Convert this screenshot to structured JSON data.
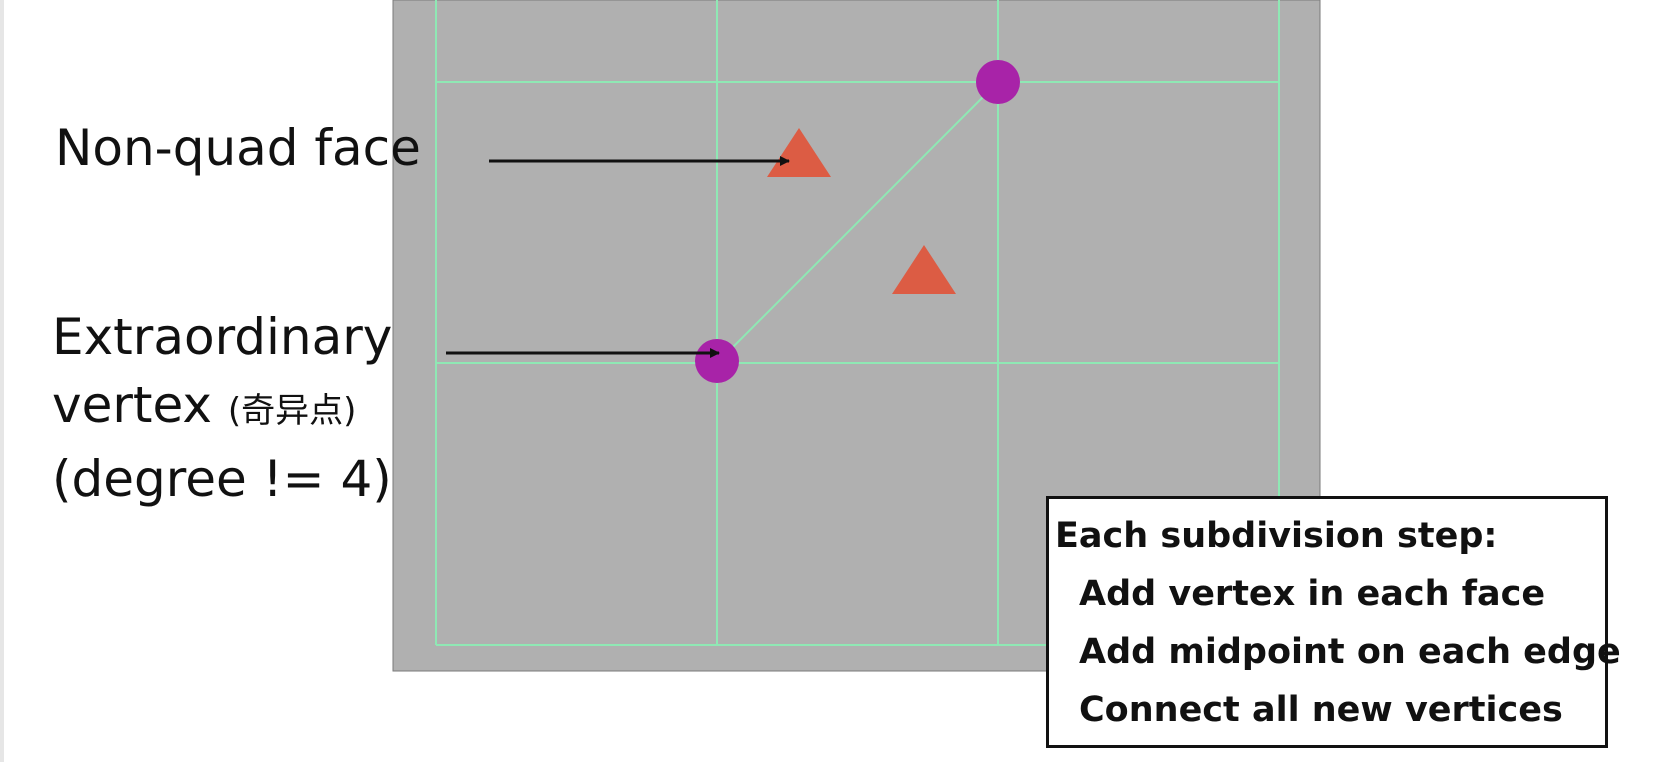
{
  "colors": {
    "panel": "#b0b0b0",
    "grid_line": "#8fe8b4",
    "extraordinary_vertex": "#a823a8",
    "face_marker": "#dc5c44",
    "arrow": "#111111"
  },
  "labels": {
    "non_quad_face": "Non-quad face",
    "extraordinary_line1": "Extraordinary",
    "extraordinary_line2": "vertex ",
    "extraordinary_cn": "(奇异点)",
    "extraordinary_line3": "(degree != 4)"
  },
  "info_box": {
    "title": "Each subdivision step:",
    "steps": [
      "Add vertex in each face",
      "Add midpoint on each edge",
      "Connect all new vertices"
    ]
  },
  "icons": {
    "vertex_marker": "circle",
    "face_marker": "triangle",
    "pointer": "arrow-right"
  }
}
